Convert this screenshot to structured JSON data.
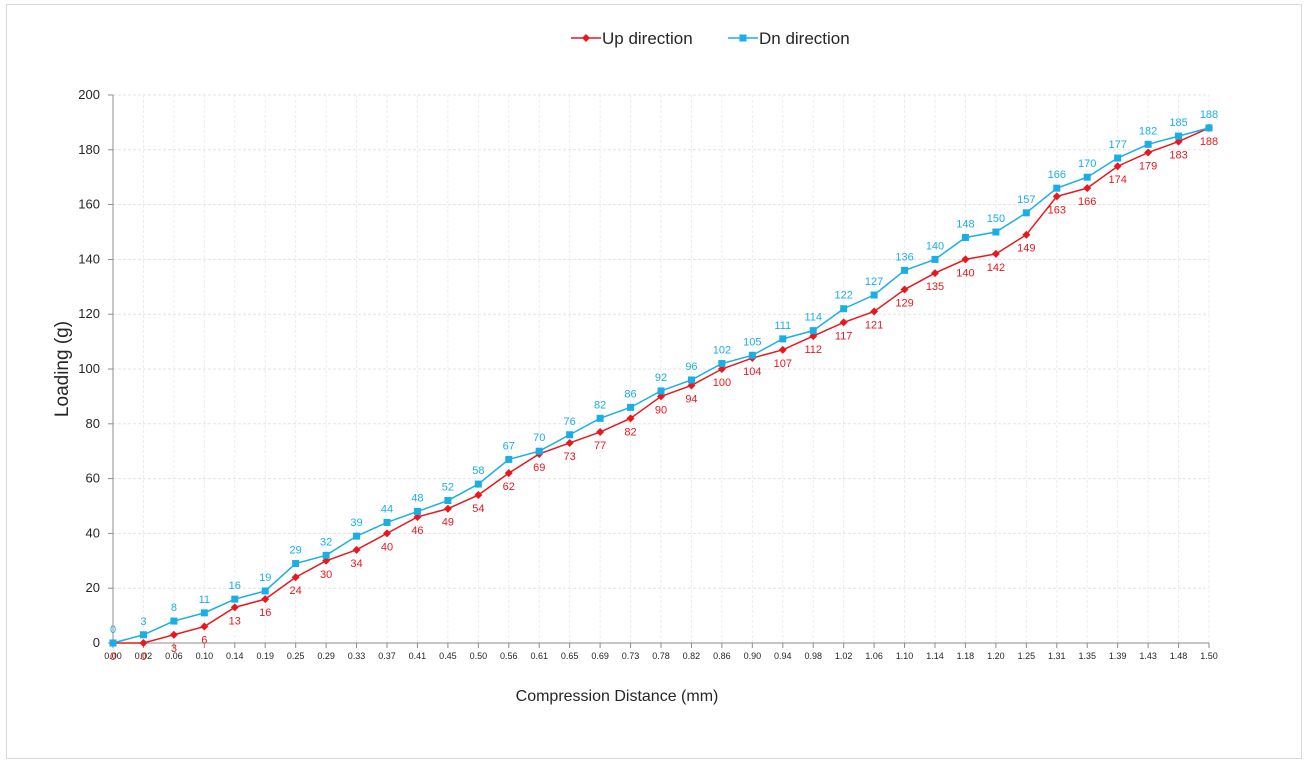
{
  "chart_data": {
    "type": "line",
    "title": "",
    "xlabel": "Compression Distance (mm)",
    "ylabel": "Loading (g)",
    "ylim": [
      0,
      200
    ],
    "yticks": [
      0,
      20,
      40,
      60,
      80,
      100,
      120,
      140,
      160,
      180,
      200
    ],
    "grid": true,
    "legend_position": "top-center",
    "x": [
      "0.00",
      "0.02",
      "0.06",
      "0.10",
      "0.14",
      "0.19",
      "0.25",
      "0.29",
      "0.33",
      "0.37",
      "0.41",
      "0.45",
      "0.50",
      "0.56",
      "0.61",
      "0.65",
      "0.69",
      "0.73",
      "0.78",
      "0.82",
      "0.86",
      "0.90",
      "0.94",
      "0.98",
      "1.02",
      "1.06",
      "1.10",
      "1.14",
      "1.18",
      "1.20",
      "1.25",
      "1.31",
      "1.35",
      "1.39",
      "1.43",
      "1.48",
      "1.50"
    ],
    "series": [
      {
        "name": "Up direction",
        "color": "#e8191e",
        "marker": "diamond",
        "values": [
          0,
          0,
          3,
          6,
          13,
          16,
          24,
          30,
          34,
          40,
          46,
          49,
          54,
          62,
          69,
          73,
          77,
          82,
          90,
          94,
          100,
          104,
          107,
          112,
          117,
          121,
          129,
          135,
          140,
          142,
          149,
          163,
          166,
          174,
          179,
          183,
          188
        ]
      },
      {
        "name": "Dn direction",
        "color": "#1aaee6",
        "marker": "square",
        "values": [
          0,
          3,
          8,
          11,
          16,
          19,
          29,
          32,
          39,
          44,
          48,
          52,
          58,
          67,
          70,
          76,
          82,
          86,
          92,
          96,
          102,
          105,
          111,
          114,
          122,
          127,
          136,
          140,
          148,
          150,
          157,
          166,
          170,
          177,
          182,
          185,
          188
        ]
      }
    ]
  }
}
